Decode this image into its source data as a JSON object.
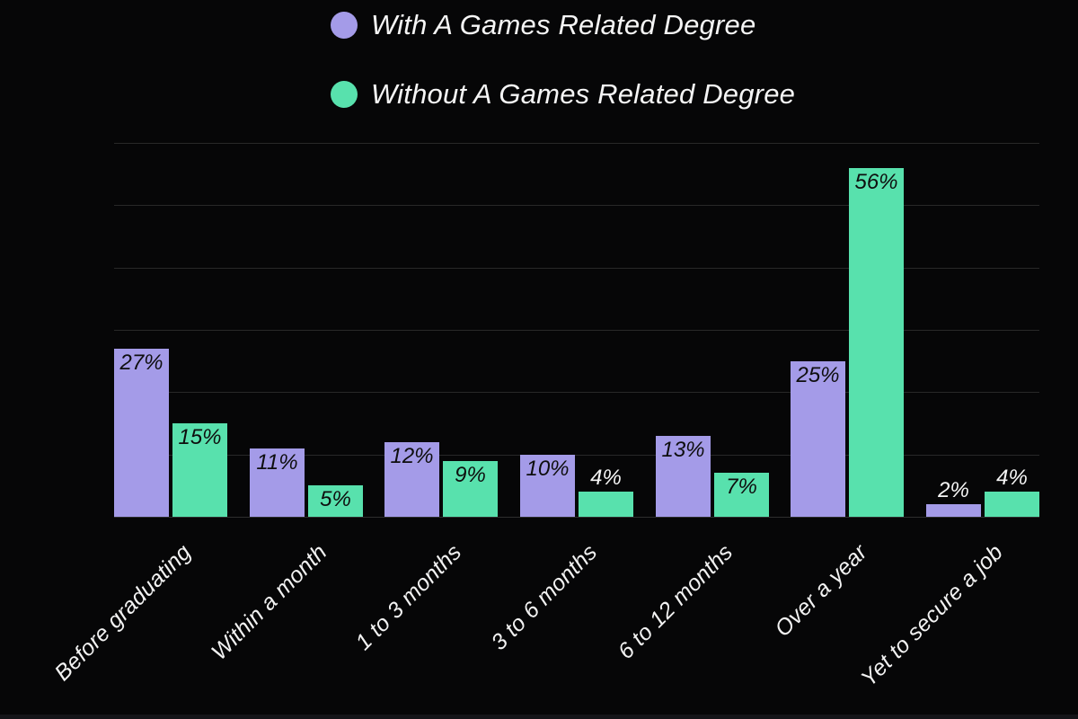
{
  "legend": {
    "items": [
      {
        "label": "With A Games Related Degree",
        "color": "#a49be8",
        "swatch": "circle"
      },
      {
        "label": "Without A Games Related Degree",
        "color": "#58e1ad",
        "swatch": "circle"
      }
    ]
  },
  "chart_data": {
    "type": "bar",
    "title": "",
    "xlabel": "",
    "ylabel": "",
    "categories": [
      "Before graduating",
      "Within a month",
      "1 to 3 months",
      "3 to 6 months",
      "6 to 12 months",
      "Over a year",
      "Yet to secure a job"
    ],
    "series": [
      {
        "name": "With A Games Related Degree",
        "color": "#a49be8",
        "values": [
          27,
          11,
          12,
          10,
          13,
          25,
          2
        ]
      },
      {
        "name": "Without A Games Related Degree",
        "color": "#58e1ad",
        "values": [
          15,
          5,
          9,
          4,
          7,
          56,
          4
        ]
      }
    ],
    "value_suffix": "%",
    "ylim": [
      0,
      60
    ],
    "gridline_step": 10,
    "grid": true,
    "y_tick_labels_shown": false,
    "legend_position": "top",
    "x_tick_rotation": -45,
    "value_label_placement": "inside bar top; outside above bar when value < 5",
    "inside_label_min_value": 5
  },
  "colors": {
    "background": "#060607",
    "gridline": "#282828",
    "axis_line": "#2d2d2d",
    "tick_label": "#f2f2f2",
    "value_label_inside": "#0e0e0e",
    "value_label_outside": "#f5f5f5",
    "bottom_strip": "#141418"
  }
}
